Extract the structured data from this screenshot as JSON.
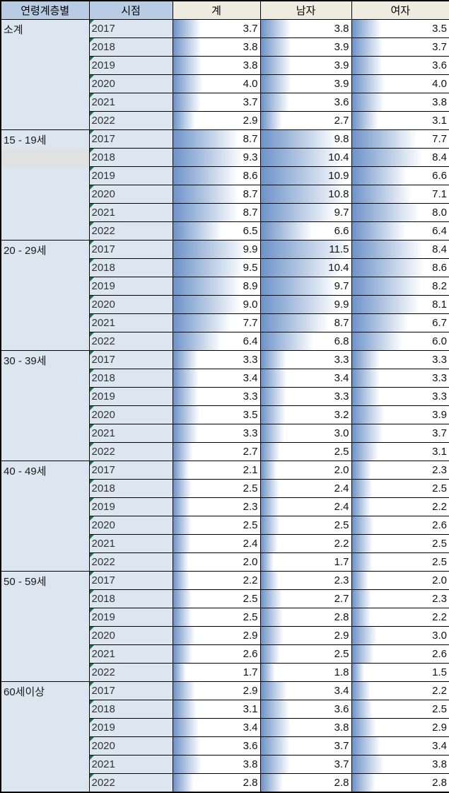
{
  "chart_data": {
    "type": "table",
    "title": "",
    "columns": [
      "연령계층별",
      "시점",
      "계",
      "남자",
      "여자"
    ],
    "row_fields": [
      "total",
      "male",
      "female"
    ],
    "bar_scale_max": 11.5,
    "bar_style": "gradient-left-to-white",
    "colors": {
      "header_blue": "#B8CCE4",
      "header_tan": "#EEECE1",
      "cell_blue": "#DCE6F1",
      "bar_left": "#6D93C8",
      "triangle_green": "#177245",
      "band_gray": "#E0E1E3"
    },
    "groups": [
      {
        "label": "소계",
        "rows": [
          {
            "year": "2017",
            "total": 3.7,
            "male": 3.8,
            "female": 3.5
          },
          {
            "year": "2018",
            "total": 3.8,
            "male": 3.9,
            "female": 3.7
          },
          {
            "year": "2019",
            "total": 3.8,
            "male": 3.9,
            "female": 3.6
          },
          {
            "year": "2020",
            "total": 4.0,
            "male": 3.9,
            "female": 4.0
          },
          {
            "year": "2021",
            "total": 3.7,
            "male": 3.6,
            "female": 3.8
          },
          {
            "year": "2022",
            "total": 2.9,
            "male": 2.7,
            "female": 3.1
          }
        ]
      },
      {
        "label": "15 - 19세",
        "highlight_band_row": 1,
        "rows": [
          {
            "year": "2017",
            "total": 8.7,
            "male": 9.8,
            "female": 7.7
          },
          {
            "year": "2018",
            "total": 9.3,
            "male": 10.4,
            "female": 8.4
          },
          {
            "year": "2019",
            "total": 8.6,
            "male": 10.9,
            "female": 6.6
          },
          {
            "year": "2020",
            "total": 8.7,
            "male": 10.8,
            "female": 7.1
          },
          {
            "year": "2021",
            "total": 8.7,
            "male": 9.7,
            "female": 8.0
          },
          {
            "year": "2022",
            "total": 6.5,
            "male": 6.6,
            "female": 6.4
          }
        ]
      },
      {
        "label": "20 - 29세",
        "rows": [
          {
            "year": "2017",
            "total": 9.9,
            "male": 11.5,
            "female": 8.4
          },
          {
            "year": "2018",
            "total": 9.5,
            "male": 10.4,
            "female": 8.6
          },
          {
            "year": "2019",
            "total": 8.9,
            "male": 9.7,
            "female": 8.2
          },
          {
            "year": "2020",
            "total": 9.0,
            "male": 9.9,
            "female": 8.1
          },
          {
            "year": "2021",
            "total": 7.7,
            "male": 8.7,
            "female": 6.7
          },
          {
            "year": "2022",
            "total": 6.4,
            "male": 6.8,
            "female": 6.0
          }
        ]
      },
      {
        "label": "30 - 39세",
        "rows": [
          {
            "year": "2017",
            "total": 3.3,
            "male": 3.3,
            "female": 3.3
          },
          {
            "year": "2018",
            "total": 3.4,
            "male": 3.4,
            "female": 3.3
          },
          {
            "year": "2019",
            "total": 3.3,
            "male": 3.3,
            "female": 3.3
          },
          {
            "year": "2020",
            "total": 3.5,
            "male": 3.2,
            "female": 3.9
          },
          {
            "year": "2021",
            "total": 3.3,
            "male": 3.0,
            "female": 3.7
          },
          {
            "year": "2022",
            "total": 2.7,
            "male": 2.5,
            "female": 3.1
          }
        ]
      },
      {
        "label": "40 - 49세",
        "rows": [
          {
            "year": "2017",
            "total": 2.1,
            "male": 2.0,
            "female": 2.3
          },
          {
            "year": "2018",
            "total": 2.5,
            "male": 2.4,
            "female": 2.5
          },
          {
            "year": "2019",
            "total": 2.3,
            "male": 2.4,
            "female": 2.2
          },
          {
            "year": "2020",
            "total": 2.5,
            "male": 2.5,
            "female": 2.6
          },
          {
            "year": "2021",
            "total": 2.4,
            "male": 2.2,
            "female": 2.5
          },
          {
            "year": "2022",
            "total": 2.0,
            "male": 1.7,
            "female": 2.5
          }
        ]
      },
      {
        "label": "50 - 59세",
        "rows": [
          {
            "year": "2017",
            "total": 2.2,
            "male": 2.3,
            "female": 2.0
          },
          {
            "year": "2018",
            "total": 2.5,
            "male": 2.7,
            "female": 2.3
          },
          {
            "year": "2019",
            "total": 2.5,
            "male": 2.8,
            "female": 2.2
          },
          {
            "year": "2020",
            "total": 2.9,
            "male": 2.9,
            "female": 3.0
          },
          {
            "year": "2021",
            "total": 2.6,
            "male": 2.5,
            "female": 2.6
          },
          {
            "year": "2022",
            "total": 1.7,
            "male": 1.8,
            "female": 1.5
          }
        ]
      },
      {
        "label": "60세이상",
        "rows": [
          {
            "year": "2017",
            "total": 2.9,
            "male": 3.4,
            "female": 2.2
          },
          {
            "year": "2018",
            "total": 3.1,
            "male": 3.6,
            "female": 2.5
          },
          {
            "year": "2019",
            "total": 3.4,
            "male": 3.8,
            "female": 2.9
          },
          {
            "year": "2020",
            "total": 3.6,
            "male": 3.7,
            "female": 3.4
          },
          {
            "year": "2021",
            "total": 3.8,
            "male": 3.7,
            "female": 3.8
          },
          {
            "year": "2022",
            "total": 2.8,
            "male": 2.8,
            "female": 2.8
          }
        ]
      }
    ]
  }
}
